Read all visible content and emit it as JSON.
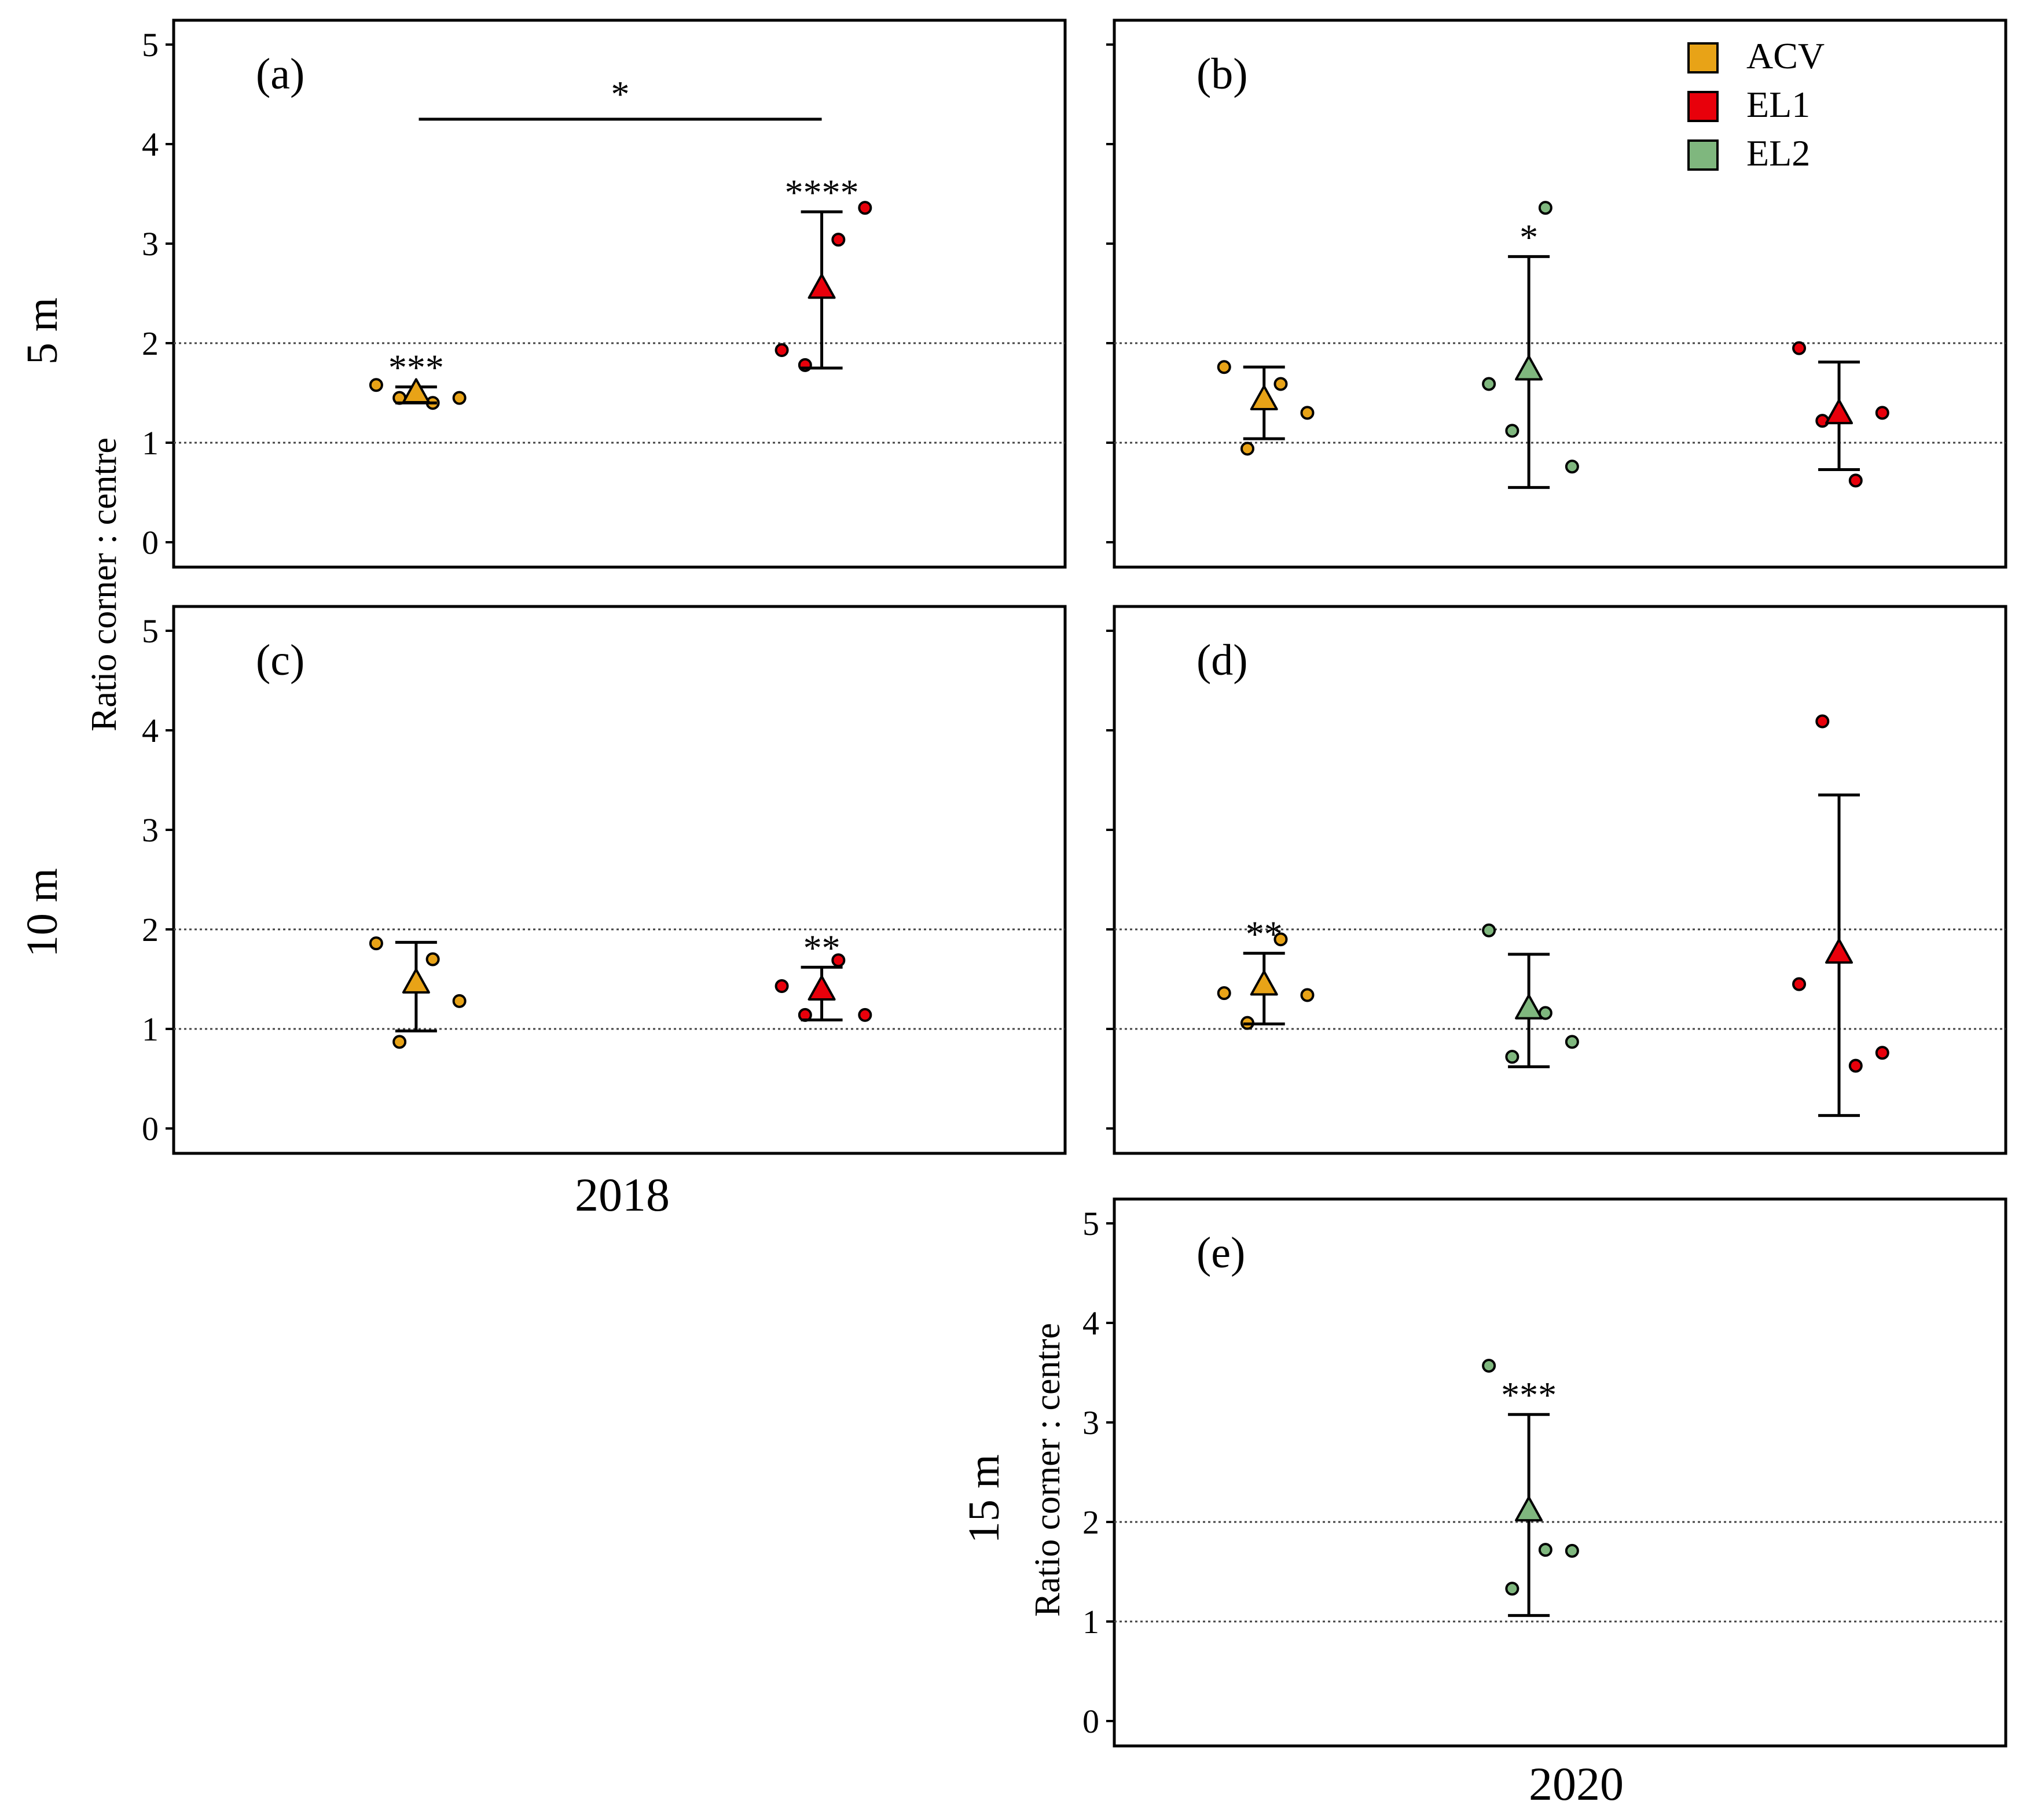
{
  "chart_data": {
    "type": "scatter",
    "subtype": "dot plot with mean triangle and error bars",
    "ylabel": "Ratio corner : centre",
    "yticks": [
      "0",
      "1",
      "2",
      "3",
      "4",
      "5"
    ],
    "ylim": [
      0,
      5.25
    ],
    "reference_lines": [
      1,
      2
    ],
    "legend": {
      "position": "top-right",
      "entries": [
        {
          "label": "ACV",
          "color": "#E8A317"
        },
        {
          "label": "EL1",
          "color": "#E8000B"
        },
        {
          "label": "EL2",
          "color": "#7FB77E"
        }
      ]
    },
    "row_labels": [
      "5 m",
      "10 m",
      "15 m"
    ],
    "column_labels": [
      "2018",
      "2020"
    ],
    "panels": [
      {
        "label": "(a)",
        "row": "5 m",
        "year": "2018",
        "groups": [
          {
            "series": "ACV",
            "position": 1,
            "mean": 1.49,
            "error": [
              1.4,
              1.56
            ],
            "points": [
              1.58,
              1.45,
              1.4,
              1.45
            ],
            "significance": "***"
          },
          {
            "series": "EL1",
            "position": 2,
            "mean": 2.54,
            "error": [
              1.75,
              3.32
            ],
            "points": [
              1.93,
              1.78,
              3.04,
              3.36
            ],
            "significance": "****"
          }
        ],
        "comparison": {
          "between": [
            "ACV",
            "EL1"
          ],
          "value": 4.25,
          "label": "*"
        }
      },
      {
        "label": "(b)",
        "row": "5 m",
        "year": "2020",
        "groups": [
          {
            "series": "ACV",
            "position": 1,
            "mean": 1.42,
            "error": [
              1.04,
              1.76
            ],
            "points": [
              1.76,
              0.94,
              1.59,
              1.3
            ],
            "significance": ""
          },
          {
            "series": "EL2",
            "position": 2,
            "mean": 1.72,
            "error": [
              0.55,
              2.87
            ],
            "points": [
              1.59,
              1.12,
              3.36,
              0.76
            ],
            "significance": "*"
          },
          {
            "series": "EL1",
            "position": 3,
            "mean": 1.28,
            "error": [
              0.73,
              1.81
            ],
            "points": [
              1.95,
              1.22,
              0.62,
              1.3
            ],
            "significance": ""
          }
        ]
      },
      {
        "label": "(c)",
        "row": "10 m",
        "year": "2018",
        "groups": [
          {
            "series": "ACV",
            "position": 1,
            "mean": 1.45,
            "error": [
              0.98,
              1.87
            ],
            "points": [
              1.86,
              0.87,
              1.7,
              1.28
            ],
            "significance": ""
          },
          {
            "series": "EL1",
            "position": 2,
            "mean": 1.38,
            "error": [
              1.09,
              1.62
            ],
            "points": [
              1.43,
              1.14,
              1.69,
              1.14
            ],
            "significance": "**"
          }
        ]
      },
      {
        "label": "(d)",
        "row": "10 m",
        "year": "2020",
        "groups": [
          {
            "series": "ACV",
            "position": 1,
            "mean": 1.43,
            "error": [
              1.05,
              1.76
            ],
            "points": [
              1.36,
              1.06,
              1.9,
              1.34
            ],
            "significance": "**"
          },
          {
            "series": "EL2",
            "position": 2,
            "mean": 1.19,
            "error": [
              0.62,
              1.75
            ],
            "points": [
              1.99,
              0.72,
              1.16,
              0.87
            ],
            "significance": ""
          },
          {
            "series": "EL1",
            "position": 3,
            "mean": 1.75,
            "error": [
              0.13,
              3.35
            ],
            "points": [
              1.45,
              4.09,
              0.63,
              0.76
            ],
            "significance": ""
          }
        ]
      },
      {
        "label": "(e)",
        "row": "15 m",
        "year": "2020",
        "groups": [
          {
            "series": "EL2",
            "position": 2,
            "mean": 2.1,
            "error": [
              1.06,
              3.08
            ],
            "points": [
              3.57,
              1.33,
              1.72,
              1.71
            ],
            "significance": "***"
          }
        ]
      }
    ]
  }
}
